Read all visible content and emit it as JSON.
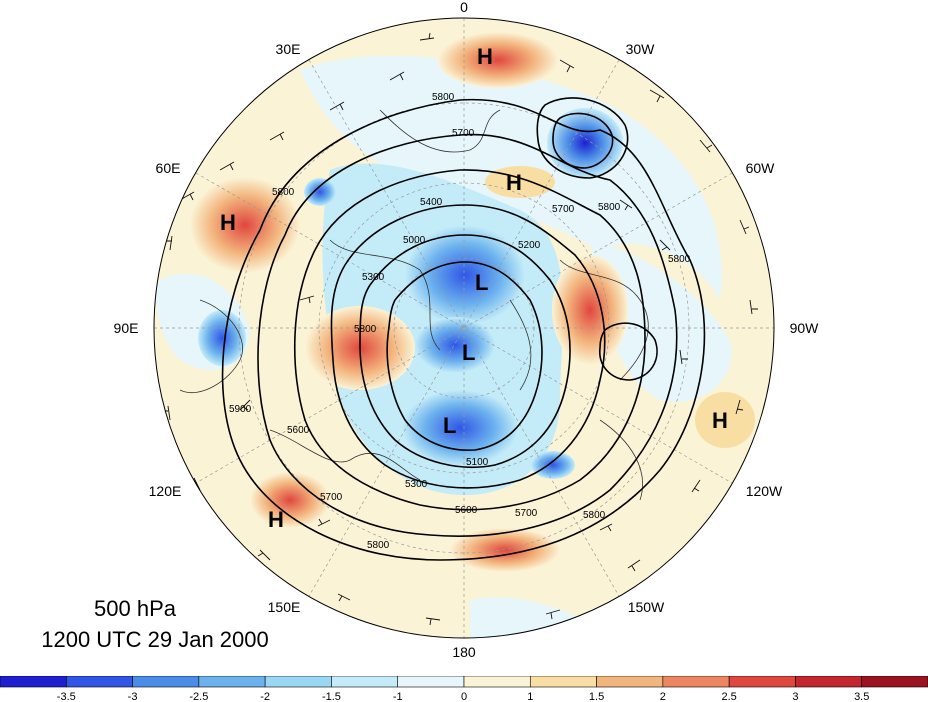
{
  "map": {
    "projection": "polar-stereographic-north",
    "longitude_labels": [
      "0",
      "30W",
      "60W",
      "90W",
      "120W",
      "150W",
      "180",
      "150E",
      "120E",
      "90E",
      "60E",
      "30E"
    ],
    "height_contour_labels": [
      "5800",
      "5700",
      "5400",
      "5200",
      "5300",
      "5000",
      "5100",
      "5600",
      "5900"
    ],
    "centers": [
      {
        "type": "H"
      },
      {
        "type": "H"
      },
      {
        "type": "H"
      },
      {
        "type": "H"
      },
      {
        "type": "H"
      },
      {
        "type": "L"
      },
      {
        "type": "L"
      },
      {
        "type": "L"
      }
    ]
  },
  "caption": {
    "level": "500 hPa",
    "time": "1200 UTC 29 Jan 2000"
  },
  "colorbar": {
    "ticks": [
      "-3.5",
      "-3",
      "-2.5",
      "-2",
      "-1.5",
      "-1",
      "0",
      "1",
      "1.5",
      "2",
      "2.5",
      "3",
      "3.5"
    ],
    "colors": [
      "#1d1fd0",
      "#2f56e6",
      "#4a8de8",
      "#6cb2ee",
      "#99d8f3",
      "#c4ecf8",
      "#e6f6fb",
      "#fbf3d5",
      "#f8dea3",
      "#f3b57e",
      "#ec8560",
      "#e0473f",
      "#c4252e",
      "#9b1220"
    ]
  }
}
